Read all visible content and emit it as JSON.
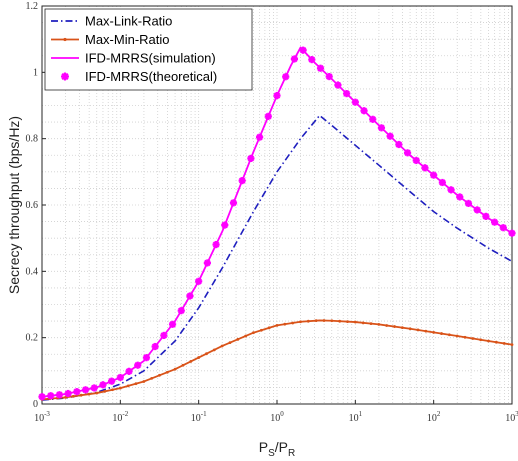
{
  "chart_data": {
    "type": "line",
    "xscale": "log",
    "xlim": [
      0.001,
      1000
    ],
    "ylim": [
      0,
      1.2
    ],
    "x_ticks": [
      {
        "value": 0.001,
        "base": "10",
        "exp": "-3"
      },
      {
        "value": 0.01,
        "base": "10",
        "exp": "-2"
      },
      {
        "value": 0.1,
        "base": "10",
        "exp": "-1"
      },
      {
        "value": 1,
        "base": "10",
        "exp": "0"
      },
      {
        "value": 10,
        "base": "10",
        "exp": "1"
      },
      {
        "value": 100,
        "base": "10",
        "exp": "2"
      },
      {
        "value": 1000,
        "base": "10",
        "exp": "3"
      }
    ],
    "y_ticks": [
      {
        "value": 0,
        "label": "0"
      },
      {
        "value": 0.2,
        "label": "0.2"
      },
      {
        "value": 0.4,
        "label": "0.4"
      },
      {
        "value": 0.6,
        "label": "0.6"
      },
      {
        "value": 0.8,
        "label": "0.8"
      },
      {
        "value": 1,
        "label": "1"
      },
      {
        "value": 1.2,
        "label": "1.2"
      }
    ],
    "xlabel": {
      "main": "P",
      "sub1": "S",
      "sep": "/P",
      "sub2": "R"
    },
    "ylabel": "Secrecy throughput (bps/Hz)",
    "grid": "minor-dotted",
    "legend_position": "top-left",
    "series": [
      {
        "name": "Max-Link-Ratio",
        "color": "#1f1fbf",
        "style": "dash-dot",
        "marker": "none",
        "points": [
          [
            0.001,
            0.012
          ],
          [
            0.002,
            0.018
          ],
          [
            0.005,
            0.035
          ],
          [
            0.01,
            0.06
          ],
          [
            0.02,
            0.1
          ],
          [
            0.05,
            0.19
          ],
          [
            0.1,
            0.29
          ],
          [
            0.2,
            0.41
          ],
          [
            0.5,
            0.58
          ],
          [
            1,
            0.7
          ],
          [
            2,
            0.8
          ],
          [
            3.5,
            0.87
          ],
          [
            5,
            0.84
          ],
          [
            10,
            0.78
          ],
          [
            20,
            0.72
          ],
          [
            50,
            0.64
          ],
          [
            100,
            0.58
          ],
          [
            200,
            0.53
          ],
          [
            500,
            0.47
          ],
          [
            1000,
            0.43
          ]
        ]
      },
      {
        "name": "Max-Min-Ratio",
        "color": "#d95319",
        "style": "solid",
        "marker": "small-dot",
        "points": [
          [
            0.001,
            0.014
          ],
          [
            0.002,
            0.02
          ],
          [
            0.005,
            0.033
          ],
          [
            0.01,
            0.048
          ],
          [
            0.02,
            0.068
          ],
          [
            0.05,
            0.105
          ],
          [
            0.1,
            0.14
          ],
          [
            0.2,
            0.175
          ],
          [
            0.5,
            0.215
          ],
          [
            1,
            0.237
          ],
          [
            2,
            0.248
          ],
          [
            3.5,
            0.252
          ],
          [
            5,
            0.251
          ],
          [
            10,
            0.247
          ],
          [
            20,
            0.24
          ],
          [
            50,
            0.227
          ],
          [
            100,
            0.216
          ],
          [
            200,
            0.205
          ],
          [
            500,
            0.19
          ],
          [
            1000,
            0.179
          ]
        ]
      },
      {
        "name": "IFD-MRRS(simulation)",
        "color": "#ff00ff",
        "style": "solid",
        "marker": "none",
        "points": [
          [
            0.001,
            0.022
          ],
          [
            0.002,
            0.03
          ],
          [
            0.005,
            0.05
          ],
          [
            0.01,
            0.08
          ],
          [
            0.02,
            0.13
          ],
          [
            0.05,
            0.25
          ],
          [
            0.1,
            0.37
          ],
          [
            0.2,
            0.52
          ],
          [
            0.5,
            0.76
          ],
          [
            1,
            0.93
          ],
          [
            1.5,
            1.02
          ],
          [
            2,
            1.075
          ],
          [
            3,
            1.03
          ],
          [
            5,
            0.98
          ],
          [
            10,
            0.91
          ],
          [
            20,
            0.84
          ],
          [
            50,
            0.75
          ],
          [
            100,
            0.69
          ],
          [
            200,
            0.63
          ],
          [
            500,
            0.56
          ],
          [
            1000,
            0.515
          ]
        ]
      },
      {
        "name": "IFD-MRRS(theoretical)",
        "color": "#ff00ff",
        "style": "none",
        "marker": "asterisk",
        "points": [
          [
            0.001,
            0.022
          ],
          [
            0.002,
            0.03
          ],
          [
            0.005,
            0.05
          ],
          [
            0.01,
            0.08
          ],
          [
            0.02,
            0.13
          ],
          [
            0.05,
            0.25
          ],
          [
            0.1,
            0.37
          ],
          [
            0.2,
            0.52
          ],
          [
            0.5,
            0.76
          ],
          [
            1,
            0.93
          ],
          [
            1.5,
            1.02
          ],
          [
            2,
            1.075
          ],
          [
            3,
            1.03
          ],
          [
            5,
            0.98
          ],
          [
            10,
            0.91
          ],
          [
            20,
            0.84
          ],
          [
            50,
            0.75
          ],
          [
            100,
            0.69
          ],
          [
            200,
            0.63
          ],
          [
            500,
            0.56
          ],
          [
            1000,
            0.515
          ]
        ]
      }
    ]
  }
}
